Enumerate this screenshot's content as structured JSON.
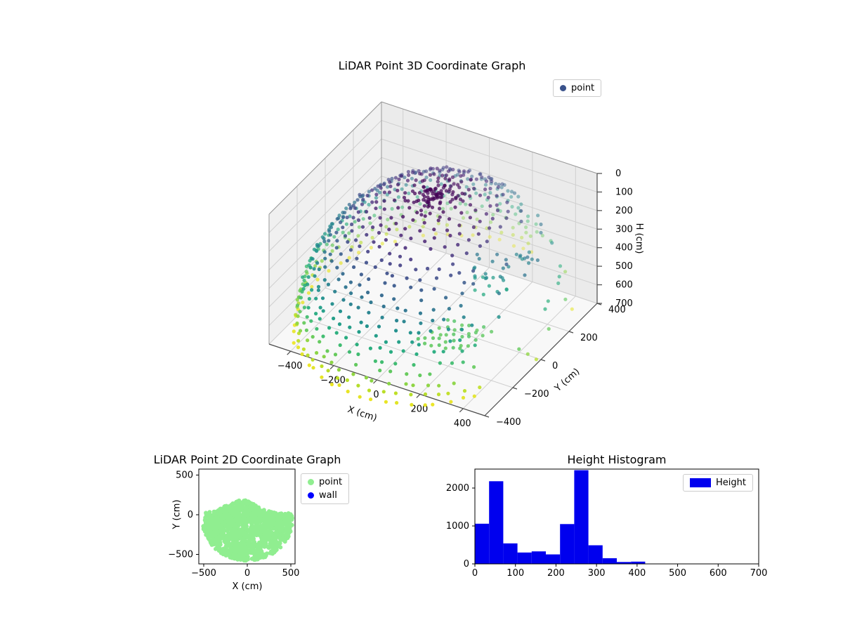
{
  "figure": {
    "background": "#ffffff"
  },
  "chart_data": [
    {
      "id": "lidar-3d",
      "type": "scatter3d",
      "title": "LiDAR Point 3D Coordinate Graph",
      "xlabel": "X (cm)",
      "ylabel": "Y (cm)",
      "zlabel": "H (cm)",
      "xlim": [
        -500,
        500
      ],
      "ylim": [
        -400,
        400
      ],
      "zlim": [
        0,
        700
      ],
      "zaxis_inverted": true,
      "xticks": [
        -400,
        -200,
        0,
        200,
        400
      ],
      "yticks": [
        -400,
        -200,
        0,
        200,
        400
      ],
      "zticks": [
        0,
        100,
        200,
        300,
        400,
        500,
        600,
        700
      ],
      "grid": true,
      "colormap": "viridis",
      "color_encodes": "H value: dark purple near H=0 (top) through green to yellow near H=700 (bottom)",
      "legend": {
        "position": "upper right",
        "entries": [
          {
            "label": "point",
            "color": "#3a528b",
            "marker": "dot"
          }
        ]
      },
      "cloud": {
        "description": "Dome-shaped shell of LiDAR returns: dense concentric dotted rings flaring out from a compact dark cap at top centre (H 0-40) to radius about 540 cm at H 650-700; front-right sector mostly empty except detached clusters",
        "shell": {
          "horizontal_radius_cm": 540,
          "vertical_extent_cm": 700,
          "rings": 22,
          "ring_step_deg": 4,
          "point_spacing_cm": 52,
          "sparse_sector_deg": [
            -38,
            72
          ]
        },
        "clusters": [
          {
            "name": "top-cap",
            "x_cm": 0,
            "y_cm": 0,
            "h_cm": [
              0,
              40
            ],
            "points": 70
          },
          {
            "name": "pillar-strips",
            "x_cm": [
              190,
              330
            ],
            "y_cm": [
              -35,
              55
            ],
            "h_cm": [
              270,
              430
            ],
            "points": 24
          },
          {
            "name": "floor-rows",
            "x_cm": [
              120,
              360
            ],
            "y_cm": [
              -300,
              -100
            ],
            "h_cm": [
              510,
              560
            ],
            "points": 35
          },
          {
            "name": "right-scatter",
            "x_cm": [
              280,
              400
            ],
            "y_cm": [
              60,
              180
            ],
            "h_cm": [
              260,
              380
            ],
            "points": 10
          }
        ]
      }
    },
    {
      "id": "lidar-2d",
      "type": "scatter",
      "title": "LiDAR Point 2D Coordinate Graph",
      "xlabel": "X (cm)",
      "ylabel": "Y (cm)",
      "xticks": [
        -500,
        0,
        500
      ],
      "yticks": [
        -500,
        0,
        500
      ],
      "xlim": [
        -556,
        548
      ],
      "ylim": [
        -620,
        575
      ],
      "legend": {
        "position": "upper right outside",
        "entries": [
          {
            "label": "point",
            "color": "#90ee90",
            "marker": "dot"
          },
          {
            "label": "wall",
            "color": "#0000ff",
            "marker": "dot"
          }
        ]
      },
      "cloud": {
        "description": "Solid light-green disc of projected points, radius about 520 cm centred near (0,-60), bulging up to y 170 around x -70, with small empty holes near (120,-310), (210,-450) and (40,-520); no blue wall points visibly distinguishable",
        "disc_center_cm": [
          0,
          -60
        ],
        "disc_radius_cm": 520
      }
    },
    {
      "id": "height-histogram",
      "type": "bar",
      "title": "Height Histogram",
      "xlabel": "",
      "ylabel": "",
      "xlim": [
        0,
        700
      ],
      "ylim": [
        0,
        2500
      ],
      "xticks": [
        0,
        100,
        200,
        300,
        400,
        500,
        600,
        700
      ],
      "yticks": [
        0,
        1000,
        2000
      ],
      "legend": {
        "position": "upper right",
        "entries": [
          {
            "label": "Height",
            "color": "#0000ee",
            "marker": "patch"
          }
        ]
      },
      "bin_edges": [
        0,
        35,
        70,
        105,
        140,
        175,
        210,
        245,
        280,
        315,
        350,
        385,
        420
      ],
      "counts": [
        1060,
        2180,
        540,
        300,
        330,
        250,
        1050,
        2470,
        490,
        150,
        50,
        60
      ]
    }
  ]
}
